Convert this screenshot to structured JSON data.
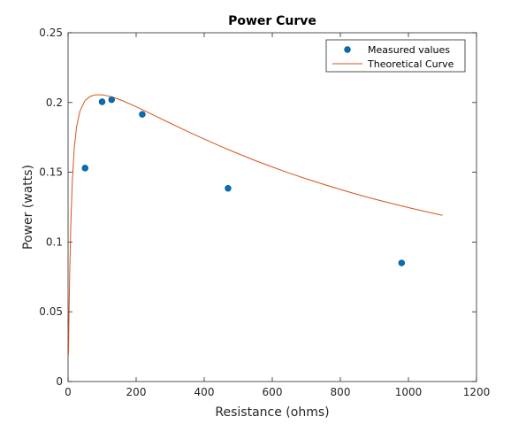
{
  "chart_data": {
    "type": "scatter",
    "title": "Power Curve",
    "xlabel": "Resistance (ohms)",
    "ylabel": "Power (watts)",
    "xlim": [
      0,
      1200
    ],
    "ylim": [
      0,
      0.25
    ],
    "x_ticks": [
      0,
      200,
      400,
      600,
      800,
      1000,
      1200
    ],
    "y_ticks": [
      0,
      0.05,
      0.1,
      0.15,
      0.2,
      0.25
    ],
    "x_tick_labels": [
      "0",
      "200",
      "400",
      "600",
      "800",
      "1000",
      "1200"
    ],
    "y_tick_labels": [
      "0",
      "0.05",
      "0.1",
      "0.15",
      "0.2",
      "0.25"
    ],
    "grid": false,
    "legend_position": "top-right",
    "series": [
      {
        "name": "Measured values",
        "kind": "markers",
        "color": "#0072BD",
        "x": [
          50,
          100,
          128,
          218,
          470,
          980
        ],
        "y": [
          0.153,
          0.2005,
          0.202,
          0.1915,
          0.1385,
          0.085
        ]
      },
      {
        "name": "Theoretical Curve",
        "kind": "line",
        "color": "#D95319",
        "x": [
          1,
          3,
          5,
          8,
          12,
          18,
          25,
          35,
          50,
          65,
          80,
          100,
          120,
          140,
          160,
          190,
          220,
          260,
          300,
          350,
          400,
          450,
          500,
          550,
          600,
          650,
          700,
          750,
          800,
          850,
          900,
          950,
          1000,
          1050,
          1100
        ],
        "y": [
          0.0189,
          0.0519,
          0.0796,
          0.1118,
          0.1412,
          0.1667,
          0.1827,
          0.194,
          0.2015,
          0.2044,
          0.2055,
          0.2055,
          0.2046,
          0.2031,
          0.2013,
          0.1981,
          0.1947,
          0.1899,
          0.1852,
          0.1794,
          0.1738,
          0.1684,
          0.1633,
          0.1584,
          0.1538,
          0.1494,
          0.1453,
          0.1414,
          0.1377,
          0.1341,
          0.1308,
          0.1277,
          0.1247,
          0.1218,
          0.1191
        ]
      }
    ]
  }
}
